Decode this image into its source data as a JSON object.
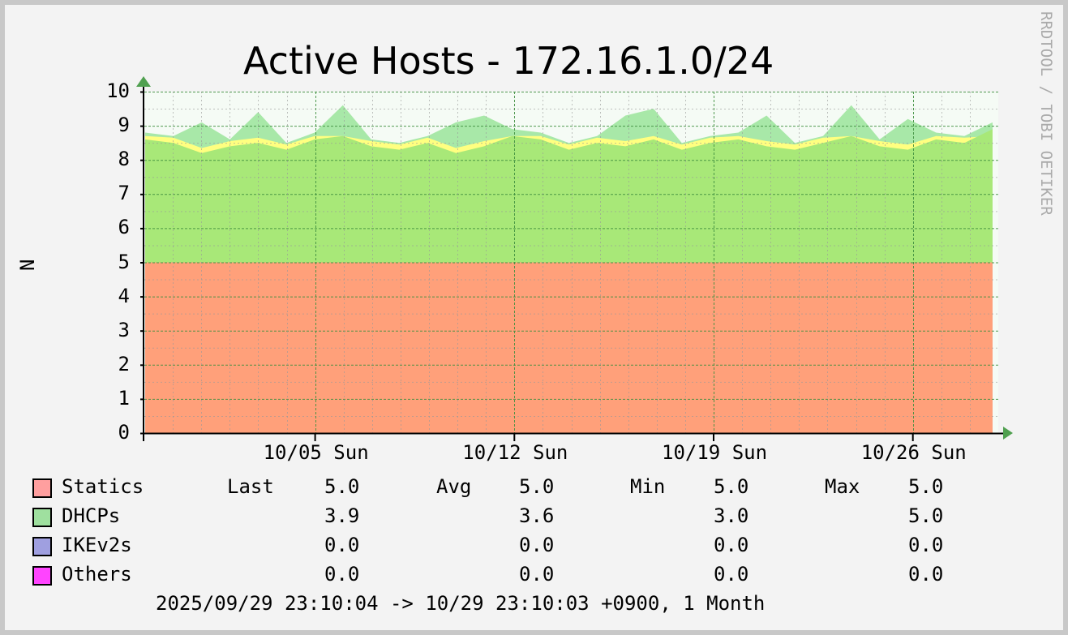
{
  "chart_data": {
    "type": "area",
    "title": "Active Hosts - 172.16.1.0/24",
    "ylabel": "N",
    "xlabel": "",
    "ylim": [
      0,
      10
    ],
    "y_ticks": [
      "0",
      "1",
      "2",
      "3",
      "4",
      "5",
      "6",
      "7",
      "8",
      "9",
      "10"
    ],
    "x_ticks": [
      "10/05 Sun",
      "10/12 Sun",
      "10/19 Sun",
      "10/26 Sun"
    ],
    "x_range": [
      "2025/09/29 23:10:04",
      "10/29 23:10:03"
    ],
    "grid": true,
    "watermark": "RRDTOOL / TOBI OETIKER",
    "time_range_text": "2025/09/29 23:10:04 -> 10/29 23:10:03 +0900, 1 Month",
    "legend": {
      "placement": "bottom",
      "stat_headers": [
        "Last",
        "Avg",
        "Min",
        "Max"
      ],
      "entries": [
        {
          "name": "Statics",
          "color": "#ff9f9f",
          "last": "5.0",
          "avg": "5.0",
          "min": "5.0",
          "max": "5.0"
        },
        {
          "name": "DHCPs",
          "color": "#9fe09f",
          "last": "3.9",
          "avg": "3.6",
          "min": "3.0",
          "max": "5.0"
        },
        {
          "name": "IKEv2s",
          "color": "#9f9fe0",
          "last": "0.0",
          "avg": "0.0",
          "min": "0.0",
          "max": "0.0"
        },
        {
          "name": "Others",
          "color": "#ff44ff",
          "last": "0.0",
          "avg": "0.0",
          "min": "0.0",
          "max": "0.0"
        }
      ]
    },
    "colors": {
      "statics_area": "#ffa07a",
      "dhcps_area": "#a8e878",
      "dhcps_max": "#a8e8a8",
      "dhcps_min": "#ffff80",
      "grid_major": "#409040",
      "axis_arrow": "#50a050"
    },
    "series": [
      {
        "name": "Statics",
        "values": [
          5,
          5,
          5,
          5,
          5,
          5,
          5,
          5,
          5,
          5,
          5,
          5,
          5,
          5,
          5,
          5,
          5,
          5,
          5,
          5,
          5,
          5,
          5,
          5,
          5,
          5,
          5,
          5,
          5,
          5,
          5
        ]
      },
      {
        "name": "DHCPs",
        "values": [
          3.6,
          3.5,
          3.2,
          3.4,
          3.5,
          3.3,
          3.6,
          3.7,
          3.4,
          3.3,
          3.5,
          3.2,
          3.4,
          3.7,
          3.6,
          3.3,
          3.5,
          3.4,
          3.6,
          3.3,
          3.5,
          3.6,
          3.4,
          3.3,
          3.5,
          3.7,
          3.4,
          3.3,
          3.6,
          3.5,
          3.9
        ]
      }
    ]
  }
}
